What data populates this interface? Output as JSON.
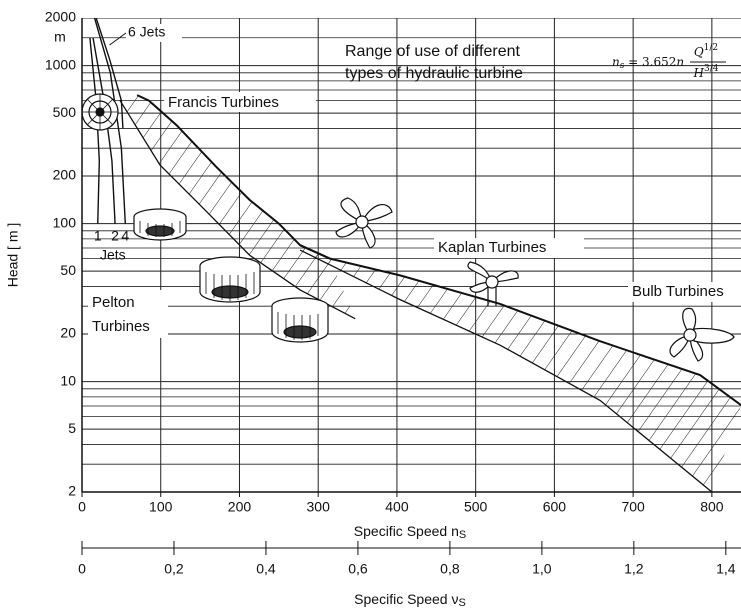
{
  "chart_data": {
    "type": "region",
    "annotation": [
      "Range of use of different",
      "types of hydraulic turbine"
    ],
    "formula": {
      "lhs": "n",
      "lhs_sub": "s",
      "rhs": " = 3.652",
      "rhs_var": "n",
      "num": "Q",
      "num_sup": "1/2",
      "den": "H",
      "den_sup": "3/4"
    },
    "xlabel": "Specific Speed n",
    "xlabel_sub": "S",
    "x2label": "Specific Speed ν",
    "x2label_sub": "S",
    "ylabel": "Head [ m ]",
    "yunit": "m",
    "ylog": true,
    "grid": true,
    "xlim": [
      0,
      837
    ],
    "xticks": [
      0,
      100,
      200,
      300,
      400,
      500,
      600,
      700,
      800
    ],
    "x2lim": [
      0,
      1.433
    ],
    "x2ticks": [
      0,
      {
        "value": 0.2,
        "label": "0,2"
      },
      {
        "value": 0.4,
        "label": "0,4"
      },
      {
        "value": 0.6,
        "label": "0,6"
      },
      {
        "value": 0.8,
        "label": "0,8"
      },
      {
        "value": 1.0,
        "label": "1,0"
      },
      {
        "value": 1.2,
        "label": "1,2"
      },
      {
        "value": 1.4,
        "label": "1,4"
      }
    ],
    "ylim": [
      2,
      2000
    ],
    "yticks": [
      2000,
      1000,
      500,
      200,
      100,
      50,
      20,
      10,
      5,
      2
    ],
    "yminor": [
      3,
      4,
      6,
      7,
      8,
      9,
      30,
      40,
      60,
      70,
      80,
      90,
      300,
      400,
      600,
      700,
      800,
      900,
      1500
    ],
    "color": "#111111",
    "regions": [
      {
        "label": "Francis Turbines",
        "upper_x": [
          70,
          85,
          120,
          170,
          213,
          250,
          277,
          315
        ],
        "upper_y": [
          650,
          600,
          420,
          230,
          141,
          100,
          73,
          60
        ],
        "lower_x": [
          48,
          99,
          150,
          213,
          277,
          347
        ],
        "lower_y": [
          605,
          235,
          131,
          63,
          38,
          25
        ]
      },
      {
        "label": "Kaplan Turbines",
        "upper_x": [
          277,
          315,
          404,
          531,
          658,
          785,
          837
        ],
        "upper_y": [
          73,
          60,
          47,
          31,
          18,
          11,
          7.1
        ],
        "lower_x": [
          277,
          404,
          531,
          658,
          800
        ],
        "lower_y": [
          68,
          33,
          17,
          7.6,
          2
        ]
      }
    ],
    "bulb_label": "Bulb Turbines",
    "pelton": {
      "label": [
        "Pelton",
        "Turbines"
      ],
      "jets_label": "Jets",
      "jets": [
        {
          "label": "1",
          "x": [
            10,
            18,
            22,
            20
          ],
          "y": [
            1500,
            600,
            250,
            100
          ]
        },
        {
          "label": "2",
          "x": [
            14,
            28,
            38,
            42
          ],
          "y": [
            1500,
            600,
            250,
            100
          ]
        },
        {
          "label": "4",
          "x": [
            16,
            36,
            50,
            55
          ],
          "y": [
            2000,
            900,
            300,
            100
          ]
        }
      ],
      "six_jets": {
        "label": "6 Jets",
        "x": [
          18,
          35,
          50,
          52
        ],
        "y": [
          2000,
          1100,
          600,
          400
        ]
      }
    }
  }
}
